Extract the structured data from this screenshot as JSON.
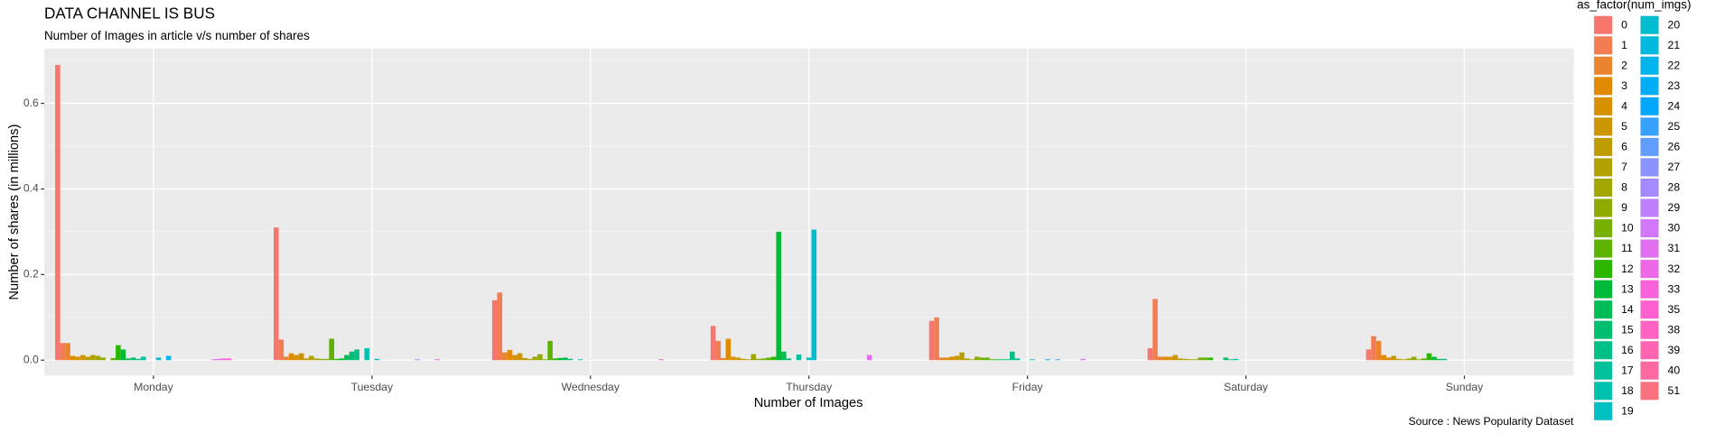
{
  "chart_data": {
    "type": "bar",
    "title": "DATA CHANNEL IS BUS",
    "subtitle": "Number of Images in article v/s number of shares",
    "x_label": "Number of Images",
    "y_label": "Number of shares (in millions)",
    "caption": "Source : News Popularity Dataset",
    "legend_title": "as_factor(num_imgs)",
    "categories": [
      "Monday",
      "Tuesday",
      "Wednesday",
      "Thursday",
      "Friday",
      "Saturday",
      "Sunday"
    ],
    "ylim": [
      -0.036,
      0.728
    ],
    "yticks": [
      {
        "value": 0,
        "label": "0.0"
      },
      0.2,
      0.4,
      0.6
    ],
    "grid": true,
    "legend_position": "right",
    "series": [
      {
        "name": "0",
        "color": "#F8766D",
        "values": [
          0.69,
          0.31,
          0.14,
          0.08,
          0.092,
          0.028,
          0.025
        ]
      },
      {
        "name": "1",
        "color": "#F27D52",
        "values": [
          0.04,
          0.048,
          0.158,
          0.045,
          0.1,
          0.143,
          0.056
        ]
      },
      {
        "name": "2",
        "color": "#E98430",
        "values": [
          0.04,
          0.008,
          0.018,
          0.005,
          0.006,
          0.008,
          0.045
        ]
      },
      {
        "name": "3",
        "color": "#E08A00",
        "values": [
          0.01,
          0.016,
          0.024,
          0.05,
          0.006,
          0.008,
          0.012
        ]
      },
      {
        "name": "4",
        "color": "#D79000",
        "values": [
          0.008,
          0.012,
          0.012,
          0.008,
          0.008,
          0.008,
          0.006
        ]
      },
      {
        "name": "5",
        "color": "#CC9600",
        "values": [
          0.012,
          0.016,
          0.016,
          0.006,
          0.01,
          0.012,
          0.01
        ]
      },
      {
        "name": "6",
        "color": "#BE9C00",
        "values": [
          0.008,
          0.004,
          0.005,
          0.003,
          0.018,
          0.004,
          0.003
        ]
      },
      {
        "name": "7",
        "color": "#B0A100",
        "values": [
          0.012,
          0.01,
          0.003,
          0.002,
          0.004,
          0.003,
          0.002
        ]
      },
      {
        "name": "8",
        "color": "#A3A500",
        "values": [
          0.01,
          0.004,
          0.008,
          0.014,
          0.002,
          0.002,
          0.004
        ]
      },
      {
        "name": "9",
        "color": "#8FAA00",
        "values": [
          0.006,
          0.003,
          0.014,
          0.003,
          0.008,
          0.002,
          0.008
        ]
      },
      {
        "name": "10",
        "color": "#78AF00",
        "values": [
          null,
          0.003,
          0.002,
          0.004,
          0.006,
          0.006,
          0.002
        ]
      },
      {
        "name": "11",
        "color": "#5EB300",
        "values": [
          0.005,
          0.05,
          0.045,
          0.006,
          0.006,
          0.006,
          0.004
        ]
      },
      {
        "name": "12",
        "color": "#2DB600",
        "values": [
          0.035,
          0.003,
          0.004,
          0.008,
          0.002,
          0.006,
          0.016
        ]
      },
      {
        "name": "13",
        "color": "#00BA38",
        "values": [
          0.025,
          0.004,
          0.005,
          0.3,
          0.002,
          null,
          0.008
        ]
      },
      {
        "name": "14",
        "color": "#00BC57",
        "values": [
          0.004,
          0.012,
          0.006,
          0.02,
          0.002,
          null,
          0.003
        ]
      },
      {
        "name": "15",
        "color": "#00BE70",
        "values": [
          0.006,
          0.02,
          0.003,
          0.004,
          0.002,
          0.006,
          0.003
        ]
      },
      {
        "name": "16",
        "color": "#00C087",
        "values": [
          0.003,
          0.025,
          null,
          null,
          0.02,
          0.002,
          null
        ]
      },
      {
        "name": "17",
        "color": "#00C19C",
        "values": [
          0.008,
          null,
          0.002,
          0.013,
          0.004,
          0.003,
          null
        ]
      },
      {
        "name": "18",
        "color": "#00C1B0",
        "values": [
          null,
          0.028,
          null,
          null,
          null,
          null,
          null
        ]
      },
      {
        "name": "19",
        "color": "#00C0C1",
        "values": [
          null,
          null,
          null,
          0.006,
          null,
          null,
          null
        ]
      },
      {
        "name": "20",
        "color": "#00BDD0",
        "values": [
          0.006,
          0.003,
          null,
          0.305,
          0.002,
          null,
          null
        ]
      },
      {
        "name": "21",
        "color": "#00B9DE",
        "values": [
          null,
          null,
          null,
          null,
          null,
          null,
          null
        ]
      },
      {
        "name": "22",
        "color": "#00B4EB",
        "values": [
          0.01,
          null,
          null,
          null,
          null,
          null,
          null
        ]
      },
      {
        "name": "23",
        "color": "#00AEF5",
        "values": [
          null,
          null,
          null,
          null,
          0.002,
          null,
          null
        ]
      },
      {
        "name": "24",
        "color": "#00A7FF",
        "values": [
          null,
          null,
          null,
          null,
          null,
          null,
          null
        ]
      },
      {
        "name": "25",
        "color": "#35A2FF",
        "values": [
          null,
          null,
          null,
          null,
          0.002,
          null,
          null
        ]
      },
      {
        "name": "26",
        "color": "#619CFF",
        "values": [
          null,
          null,
          null,
          null,
          null,
          null,
          null
        ]
      },
      {
        "name": "27",
        "color": "#8B93FF",
        "values": [
          null,
          null,
          null,
          null,
          null,
          null,
          null
        ]
      },
      {
        "name": "28",
        "color": "#A58AFF",
        "values": [
          null,
          0.002,
          null,
          null,
          null,
          null,
          null
        ]
      },
      {
        "name": "29",
        "color": "#BF80FF",
        "values": [
          null,
          null,
          null,
          null,
          null,
          null,
          null
        ]
      },
      {
        "name": "30",
        "color": "#D277FA",
        "values": [
          null,
          null,
          null,
          null,
          0.003,
          null,
          null
        ]
      },
      {
        "name": "31",
        "color": "#E16FEF",
        "values": [
          0.002,
          null,
          null,
          0.012,
          null,
          null,
          null
        ]
      },
      {
        "name": "32",
        "color": "#EE67E7",
        "values": [
          0.003,
          0.002,
          null,
          null,
          null,
          null,
          null
        ]
      },
      {
        "name": "33",
        "color": "#F863DC",
        "values": [
          0.004,
          null,
          0.002,
          null,
          null,
          null,
          null
        ]
      },
      {
        "name": "35",
        "color": "#FE61CF",
        "values": [
          0.004,
          null,
          null,
          null,
          null,
          null,
          null
        ]
      },
      {
        "name": "38",
        "color": "#FF62C1",
        "values": [
          null,
          null,
          null,
          null,
          null,
          null,
          null
        ]
      },
      {
        "name": "39",
        "color": "#FF65B1",
        "values": [
          null,
          null,
          null,
          null,
          null,
          null,
          null
        ]
      },
      {
        "name": "40",
        "color": "#FF69A1",
        "values": [
          null,
          null,
          null,
          null,
          null,
          null,
          null
        ]
      },
      {
        "name": "51",
        "color": "#FB727F",
        "values": [
          null,
          null,
          null,
          null,
          null,
          null,
          null
        ]
      }
    ]
  }
}
